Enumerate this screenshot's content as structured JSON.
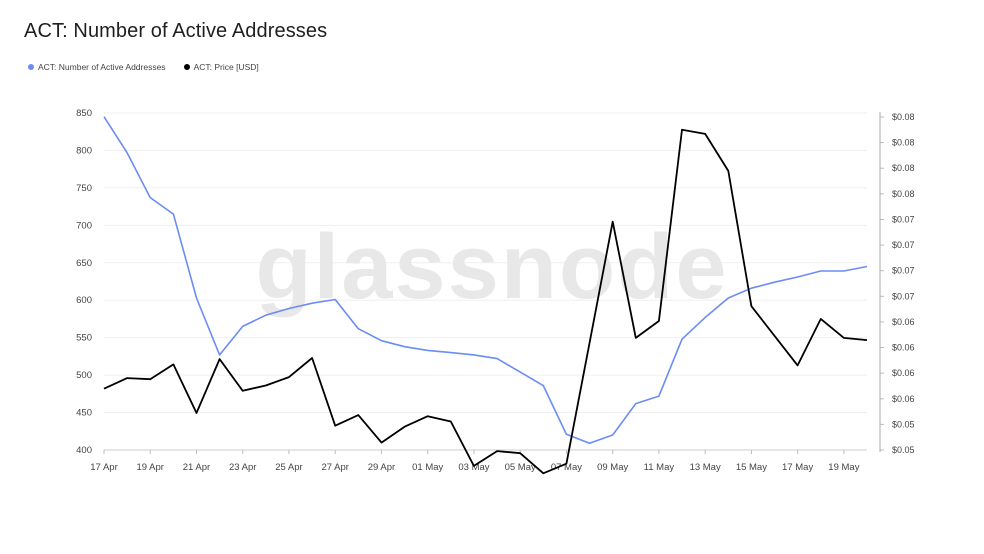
{
  "title": "ACT: Number of Active Addresses",
  "watermark": "glassnode",
  "legend": [
    {
      "label": "ACT: Number of Active Addresses",
      "color": "#6b8cf5"
    },
    {
      "label": "ACT: Price [USD]",
      "color": "#000000"
    }
  ],
  "chart_data": {
    "type": "line",
    "title": "ACT: Number of Active Addresses",
    "x": [
      "17 Apr",
      "18 Apr",
      "19 Apr",
      "20 Apr",
      "21 Apr",
      "22 Apr",
      "23 Apr",
      "24 Apr",
      "25 Apr",
      "26 Apr",
      "27 Apr",
      "28 Apr",
      "29 Apr",
      "30 Apr",
      "01 May",
      "02 May",
      "03 May",
      "04 May",
      "05 May",
      "06 May",
      "07 May",
      "08 May",
      "09 May",
      "10 May",
      "11 May",
      "12 May",
      "13 May",
      "14 May",
      "15 May",
      "16 May",
      "17 May",
      "18 May",
      "19 May",
      "20 May"
    ],
    "xticks": [
      "17 Apr",
      "19 Apr",
      "21 Apr",
      "23 Apr",
      "25 Apr",
      "27 Apr",
      "29 Apr",
      "01 May",
      "03 May",
      "05 May",
      "07 May",
      "09 May",
      "11 May",
      "13 May",
      "15 May",
      "17 May",
      "19 May"
    ],
    "y_left": {
      "ylim": [
        400,
        850
      ],
      "ticks": [
        "850",
        "800",
        "750",
        "700",
        "650",
        "600",
        "550",
        "500",
        "450",
        "400"
      ]
    },
    "y_right": {
      "ylim": [
        0.05,
        0.0815
      ],
      "ticks": [
        "$0.08",
        "$0.08",
        "$0.08",
        "$0.08",
        "$0.07",
        "$0.07",
        "$0.07",
        "$0.07",
        "$0.06",
        "$0.06",
        "$0.06",
        "$0.06",
        "$0.05",
        "$0.05"
      ]
    },
    "series": [
      {
        "name": "ACT: Number of Active Addresses",
        "axis": "left",
        "color": "#6b8cf5",
        "values": [
          845,
          797,
          737,
          715,
          603,
          527,
          565,
          580,
          589,
          596,
          601,
          562,
          546,
          538,
          533,
          530,
          527,
          522,
          504,
          486,
          421,
          409,
          420,
          462,
          472,
          548,
          577,
          603,
          616,
          624,
          631,
          639,
          639,
          645
        ]
      },
      {
        "name": "ACT: Price [USD]",
        "axis": "right",
        "color": "#000000",
        "values": [
          0.0558,
          0.0568,
          0.0567,
          0.0581,
          0.0535,
          0.0586,
          0.0556,
          0.0561,
          0.0569,
          0.0587,
          0.0523,
          0.0533,
          0.0507,
          0.0522,
          0.0532,
          0.0527,
          0.0485,
          0.0499,
          0.0497,
          0.0478,
          0.0487,
          0.0601,
          0.0716,
          0.0606,
          0.0622,
          0.0803,
          0.0799,
          0.0764,
          0.0636,
          0.0608,
          0.058,
          0.0624,
          0.0606,
          0.0604
        ]
      }
    ],
    "grid": true,
    "legend_position": "top-left"
  }
}
